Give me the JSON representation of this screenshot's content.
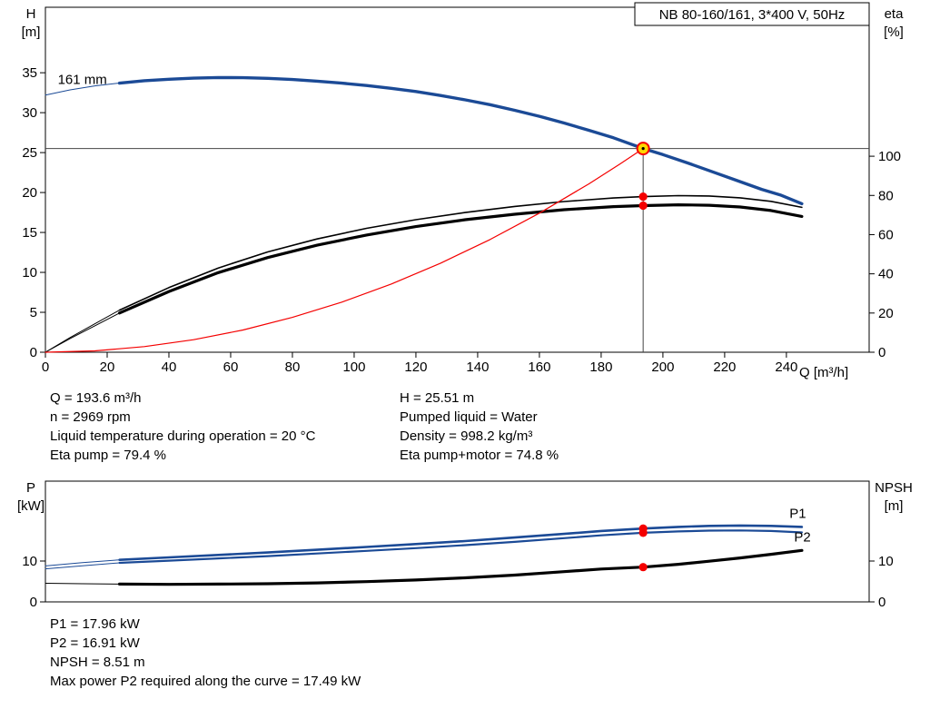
{
  "colors": {
    "blue": "#1b4a96",
    "black": "#000000",
    "red": "#f40000",
    "yellow": "#ffd800",
    "crosshair": "#444444"
  },
  "info": {
    "left": {
      "flow": "Q = 193.6 m³/h",
      "speed": "n = 2969 rpm",
      "temp": "Liquid temperature during operation = 20 °C",
      "eta_pump": "Eta pump = 79.4 %"
    },
    "right": {
      "head": "H = 25.51 m",
      "liquid": "Pumped liquid = Water",
      "density": "Density = 998.2 kg/m³",
      "eta_total": "Eta pump+motor = 74.8 %"
    }
  },
  "power_info": {
    "p1": "P1 = 17.96 kW",
    "p2": "P2 = 16.91 kW",
    "npsh": "NPSH = 8.51 m",
    "max_p2": "Max power P2 required along the curve = 17.49 kW"
  },
  "chart_data": [
    {
      "type": "line",
      "name": "qh-eta-chart",
      "title": "NB 80-160/161, 3*400 V, 50Hz",
      "x_axis": {
        "label": "Q [m³/h]",
        "min": 0,
        "max": 266.8,
        "ticks": [
          0,
          20,
          40,
          60,
          80,
          100,
          120,
          140,
          160,
          180,
          200,
          220,
          240
        ],
        "show_tick_labels": true
      },
      "y_left": {
        "label": "H",
        "unit": "[m]",
        "min": 0,
        "max": 43.2,
        "ticks": [
          0,
          5,
          10,
          15,
          20,
          25,
          30,
          35
        ]
      },
      "y_right": {
        "label": "eta",
        "unit": "[%]",
        "min": 0,
        "max": 176,
        "ticks": [
          0,
          20,
          40,
          60,
          80,
          100
        ]
      },
      "series": [
        {
          "name": "head-thin",
          "axis": "left",
          "color": "blue",
          "width": 1,
          "points": [
            [
              0,
              32.2
            ],
            [
              8,
              32.85
            ],
            [
              16,
              33.35
            ],
            [
              25,
              33.75
            ]
          ]
        },
        {
          "name": "head-161mm",
          "axis": "left",
          "color": "blue",
          "width": 3.4,
          "points": [
            [
              24,
              33.7
            ],
            [
              32,
              34.0
            ],
            [
              40,
              34.18
            ],
            [
              48,
              34.32
            ],
            [
              56,
              34.4
            ],
            [
              64,
              34.38
            ],
            [
              72,
              34.3
            ],
            [
              80,
              34.15
            ],
            [
              88,
              33.95
            ],
            [
              96,
              33.7
            ],
            [
              104,
              33.4
            ],
            [
              112,
              33.05
            ],
            [
              120,
              32.65
            ],
            [
              128,
              32.15
            ],
            [
              136,
              31.6
            ],
            [
              144,
              31.0
            ],
            [
              152,
              30.3
            ],
            [
              160,
              29.55
            ],
            [
              168,
              28.7
            ],
            [
              176,
              27.8
            ],
            [
              184,
              26.85
            ],
            [
              193.6,
              25.51
            ],
            [
              200,
              24.75
            ],
            [
              208,
              23.7
            ],
            [
              216,
              22.6
            ],
            [
              224,
              21.5
            ],
            [
              232,
              20.4
            ],
            [
              238,
              19.7
            ],
            [
              245,
              18.6
            ]
          ]
        },
        {
          "name": "eta-pump-thin",
          "axis": "right",
          "color": "black",
          "width": 1,
          "points": [
            [
              0,
              0
            ],
            [
              8,
              7.5
            ],
            [
              16,
              14.5
            ],
            [
              24,
              21.5
            ]
          ]
        },
        {
          "name": "eta-pump",
          "axis": "right",
          "color": "black",
          "width": 1.6,
          "points": [
            [
              24,
              21.5
            ],
            [
              40,
              33
            ],
            [
              56,
              43
            ],
            [
              72,
              51.2
            ],
            [
              88,
              57.8
            ],
            [
              104,
              63.2
            ],
            [
              120,
              67.6
            ],
            [
              136,
              71.3
            ],
            [
              152,
              74.4
            ],
            [
              168,
              76.9
            ],
            [
              184,
              78.7
            ],
            [
              193.6,
              79.4
            ],
            [
              205,
              79.9
            ],
            [
              215,
              79.7
            ],
            [
              225,
              78.8
            ],
            [
              235,
              77.0
            ],
            [
              245,
              73.9
            ]
          ]
        },
        {
          "name": "eta-pump-motor-thin",
          "axis": "right",
          "color": "black",
          "width": 1,
          "points": [
            [
              0,
              0
            ],
            [
              8,
              7
            ],
            [
              16,
              13.5
            ],
            [
              24,
              20
            ]
          ]
        },
        {
          "name": "eta-pump-motor",
          "axis": "right",
          "color": "black",
          "width": 3.2,
          "points": [
            [
              24,
              20
            ],
            [
              40,
              31
            ],
            [
              56,
              40.6
            ],
            [
              72,
              48.3
            ],
            [
              88,
              54.6
            ],
            [
              104,
              59.8
            ],
            [
              120,
              64.1
            ],
            [
              136,
              67.6
            ],
            [
              152,
              70.4
            ],
            [
              168,
              72.7
            ],
            [
              184,
              74.3
            ],
            [
              193.6,
              74.8
            ],
            [
              205,
              75.2
            ],
            [
              215,
              75.0
            ],
            [
              225,
              74.1
            ],
            [
              235,
              72.3
            ],
            [
              245,
              69.3
            ]
          ]
        },
        {
          "name": "system-resistance",
          "axis": "left",
          "color": "red",
          "width": 1.2,
          "points": [
            [
              0,
              0
            ],
            [
              16,
              0.17
            ],
            [
              32,
              0.7
            ],
            [
              48,
              1.57
            ],
            [
              64,
              2.79
            ],
            [
              80,
              4.36
            ],
            [
              96,
              6.28
            ],
            [
              112,
              8.54
            ],
            [
              128,
              11.15
            ],
            [
              144,
              14.11
            ],
            [
              160,
              17.42
            ],
            [
              176,
              21.08
            ],
            [
              186,
              23.54
            ],
            [
              193.6,
              25.51
            ]
          ]
        }
      ],
      "duty_point": {
        "q": 193.6,
        "h": 25.51
      },
      "markers": [
        {
          "q": 193.6,
          "v": 79.4,
          "axis": "right"
        },
        {
          "q": 193.6,
          "v": 74.8,
          "axis": "right"
        }
      ],
      "labels": [
        {
          "text": "161 mm",
          "q": 4,
          "v": 33.6,
          "axis": "left",
          "color": "black"
        }
      ]
    },
    {
      "type": "line",
      "name": "power-npsh-chart",
      "x_axis": {
        "label": "",
        "min": 0,
        "max": 266.8,
        "ticks": [],
        "show_tick_labels": false
      },
      "y_left": {
        "label": "P",
        "unit": "[kW]",
        "min": 0,
        "max": 29.56,
        "ticks": [
          0,
          10
        ]
      },
      "y_right": {
        "label": "NPSH",
        "unit": "[m]",
        "min": 0,
        "max": 29.56,
        "ticks": [
          0,
          10
        ]
      },
      "series": [
        {
          "name": "p1-thin",
          "axis": "left",
          "color": "blue",
          "width": 1,
          "points": [
            [
              0,
              8.8
            ],
            [
              12,
              9.6
            ],
            [
              24,
              10.3
            ]
          ]
        },
        {
          "name": "p1",
          "axis": "left",
          "color": "blue",
          "width": 2.6,
          "points": [
            [
              24,
              10.3
            ],
            [
              40,
              10.9
            ],
            [
              56,
              11.5
            ],
            [
              72,
              12.1
            ],
            [
              88,
              12.75
            ],
            [
              104,
              13.45
            ],
            [
              120,
              14.15
            ],
            [
              136,
              14.9
            ],
            [
              152,
              15.75
            ],
            [
              168,
              16.65
            ],
            [
              180,
              17.35
            ],
            [
              193.6,
              17.96
            ],
            [
              205,
              18.35
            ],
            [
              215,
              18.6
            ],
            [
              225,
              18.7
            ],
            [
              235,
              18.6
            ],
            [
              245,
              18.35
            ]
          ]
        },
        {
          "name": "p2-thin",
          "axis": "left",
          "color": "blue",
          "width": 1,
          "points": [
            [
              0,
              8.1
            ],
            [
              12,
              8.85
            ],
            [
              24,
              9.55
            ]
          ]
        },
        {
          "name": "p2",
          "axis": "left",
          "color": "blue",
          "width": 2.2,
          "points": [
            [
              24,
              9.55
            ],
            [
              40,
              10.1
            ],
            [
              56,
              10.65
            ],
            [
              72,
              11.2
            ],
            [
              88,
              11.85
            ],
            [
              104,
              12.5
            ],
            [
              120,
              13.15
            ],
            [
              136,
              13.9
            ],
            [
              152,
              14.7
            ],
            [
              168,
              15.6
            ],
            [
              180,
              16.3
            ],
            [
              193.6,
              16.91
            ],
            [
              205,
              17.25
            ],
            [
              215,
              17.45
            ],
            [
              225,
              17.49
            ],
            [
              235,
              17.35
            ],
            [
              245,
              17.0
            ]
          ]
        },
        {
          "name": "npsh-thin",
          "axis": "right",
          "color": "black",
          "width": 1,
          "points": [
            [
              0,
              4.55
            ],
            [
              12,
              4.45
            ],
            [
              24,
              4.35
            ]
          ]
        },
        {
          "name": "npsh",
          "axis": "right",
          "color": "black",
          "width": 3.2,
          "points": [
            [
              24,
              4.35
            ],
            [
              40,
              4.3
            ],
            [
              56,
              4.35
            ],
            [
              72,
              4.45
            ],
            [
              88,
              4.65
            ],
            [
              104,
              4.95
            ],
            [
              120,
              5.35
            ],
            [
              136,
              5.9
            ],
            [
              152,
              6.55
            ],
            [
              168,
              7.4
            ],
            [
              180,
              8.05
            ],
            [
              193.6,
              8.51
            ],
            [
              205,
              9.2
            ],
            [
              215,
              9.95
            ],
            [
              225,
              10.75
            ],
            [
              235,
              11.65
            ],
            [
              245,
              12.6
            ]
          ]
        }
      ],
      "markers": [
        {
          "q": 193.6,
          "v": 17.96,
          "axis": "left"
        },
        {
          "q": 193.6,
          "v": 16.91,
          "axis": "left"
        },
        {
          "q": 193.6,
          "v": 8.51,
          "axis": "right"
        }
      ],
      "labels": [
        {
          "text": "P1",
          "q": 241,
          "v": 20.6,
          "axis": "left",
          "color": "blue"
        },
        {
          "text": "P2",
          "q": 242.5,
          "v": 14.8,
          "axis": "left",
          "color": "blue"
        }
      ]
    }
  ]
}
